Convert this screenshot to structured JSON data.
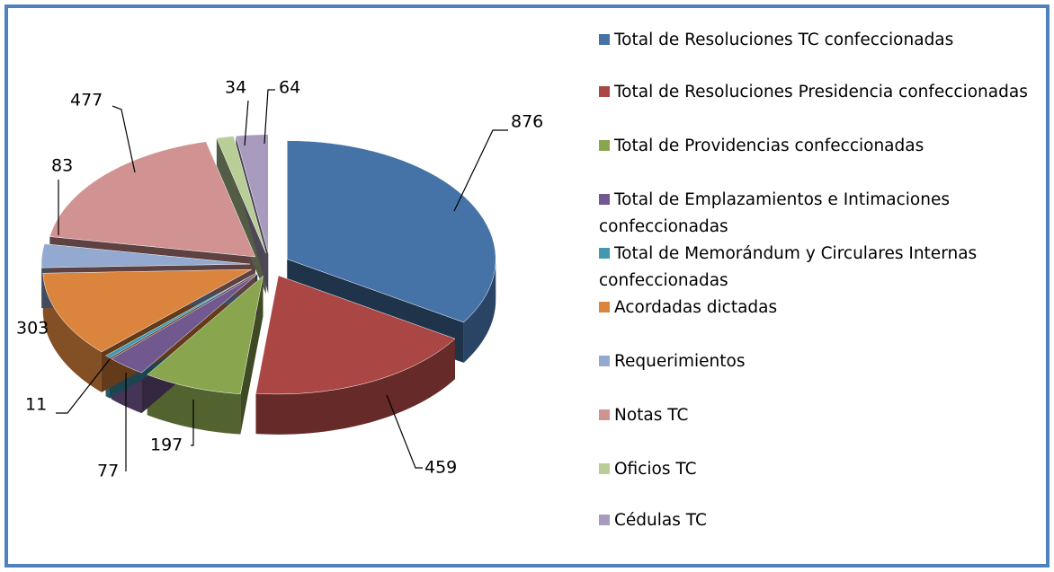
{
  "chart_data": {
    "type": "pie",
    "categories": [
      "Total de Resoluciones TC confeccionadas",
      "Total de Resoluciones Presidencia confeccionadas",
      "Total de Providencias confeccionadas",
      "Total de Emplazamientos  e Intimaciones confeccionadas",
      "Total de Memorándum  y Circulares Internas confeccionadas",
      "Acordadas dictadas",
      "Requerimientos",
      "Notas TC",
      "Oficios TC",
      "Cédulas TC"
    ],
    "values": [
      876,
      459,
      197,
      77,
      11,
      303,
      83,
      477,
      34,
      64
    ],
    "colors": [
      "#4572a7",
      "#aa4643",
      "#89a54e",
      "#71588f",
      "#4198af",
      "#db843d",
      "#93a9cf",
      "#d19392",
      "#b9cd96",
      "#a99bbd"
    ]
  }
}
